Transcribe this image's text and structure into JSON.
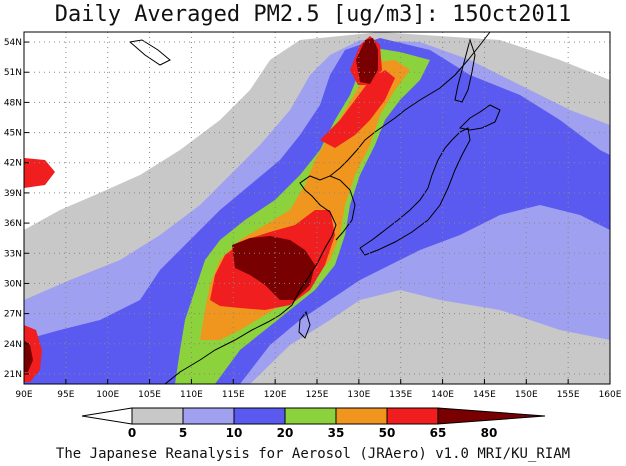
{
  "map": {
    "title": "Daily Averaged PM2.5 [ug/m3]: 15Oct2011",
    "lon_range": [
      90,
      160
    ],
    "lat_range": [
      20,
      55
    ],
    "lon_ticks": [
      "90E",
      "95E",
      "100E",
      "105E",
      "110E",
      "115E",
      "120E",
      "125E",
      "130E",
      "135E",
      "140E",
      "145E",
      "150E",
      "155E",
      "160E"
    ],
    "lat_ticks": [
      "54N",
      "51N",
      "48N",
      "45N",
      "42N",
      "39N",
      "36N",
      "33N",
      "30N",
      "27N",
      "24N",
      "21N"
    ],
    "grid": "dotted"
  },
  "legend": {
    "thresholds": [
      "0",
      "5",
      "10",
      "20",
      "35",
      "50",
      "65",
      "80"
    ],
    "colors": [
      "#ffffff",
      "#c8c8c8",
      "#a0a0f0",
      "#5a5af0",
      "#8cd23c",
      "#f0961e",
      "#f01e1e",
      "#780000"
    ]
  },
  "credit": "The Japanese Reanalysis for Aerosol (JRAero) v1.0 MRI/KU_RIAM"
}
